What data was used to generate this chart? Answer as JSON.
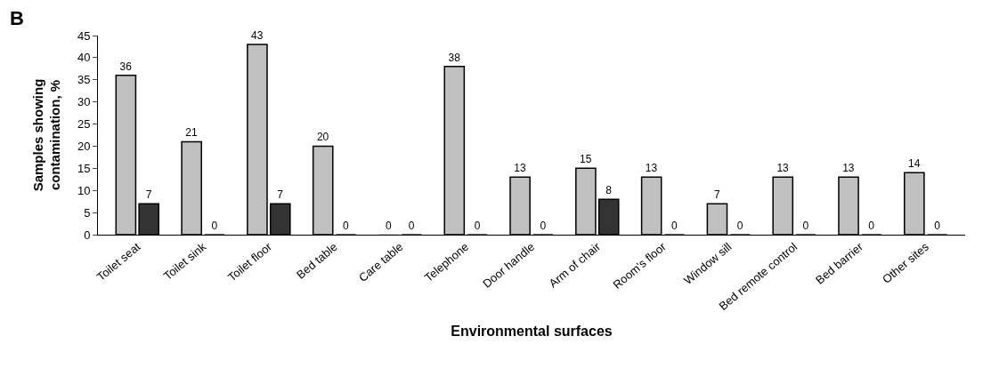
{
  "chart_data": {
    "type": "bar",
    "title": "B",
    "xlabel": "Environmental surfaces",
    "ylabel": "Samples showing\ncontamination, %",
    "categories": [
      "Toilet seat",
      "Toilet sink",
      "Toilet floor",
      "Bed table",
      "Care table",
      "Telephone",
      "Door handle",
      "Arm of chair",
      "Room's floor",
      "Window sill",
      "Bed remote control",
      "Bed barrier",
      "Other sites"
    ],
    "series": [
      {
        "color": "#c0c0c0",
        "values": [
          36,
          21,
          43,
          20,
          0,
          38,
          13,
          15,
          13,
          7,
          13,
          13,
          14
        ]
      },
      {
        "color": "#333333",
        "values": [
          7,
          0,
          7,
          0,
          0,
          0,
          0,
          8,
          0,
          0,
          0,
          0,
          0
        ]
      }
    ],
    "ylim": [
      0,
      45
    ],
    "yticks": [
      0,
      5,
      10,
      15,
      20,
      25,
      30,
      35,
      40,
      45
    ],
    "data_labels": true
  }
}
